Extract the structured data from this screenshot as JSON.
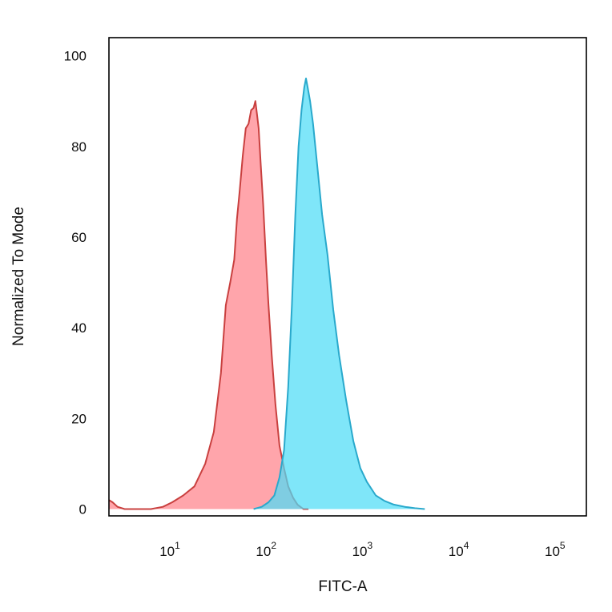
{
  "chart_data": {
    "type": "area",
    "title": "",
    "xlabel": "FITC-A",
    "ylabel": "Normalized To Mode",
    "x_scale": "log",
    "xlim": [
      2.2,
      200000
    ],
    "ylim": [
      -1.5,
      104
    ],
    "grid": false,
    "legend": "none",
    "x_ticks": [
      {
        "base": "10",
        "exp": "1",
        "value": 10
      },
      {
        "base": "10",
        "exp": "2",
        "value": 100
      },
      {
        "base": "10",
        "exp": "3",
        "value": 1000
      },
      {
        "base": "10",
        "exp": "4",
        "value": 10000
      },
      {
        "base": "10",
        "exp": "5",
        "value": 100000
      }
    ],
    "y_ticks": [
      {
        "label": "0",
        "value": 0
      },
      {
        "label": "20",
        "value": 20
      },
      {
        "label": "40",
        "value": 40
      },
      {
        "label": "60",
        "value": 60
      },
      {
        "label": "80",
        "value": 80
      },
      {
        "label": "100",
        "value": 100
      }
    ],
    "series": [
      {
        "color_fill": "#ff8c94",
        "color_line": "#c9403f",
        "opacity": 0.78,
        "x": [
          2.2,
          2.4,
          2.7,
          3.2,
          6,
          8,
          10,
          13,
          17,
          22,
          27,
          32,
          36,
          40,
          44,
          47,
          50,
          54,
          58,
          62,
          66,
          70,
          73,
          76,
          79,
          83,
          88,
          94,
          100,
          108,
          118,
          130,
          145,
          160,
          180,
          200,
          230,
          260
        ],
        "y": [
          2,
          1.5,
          0.5,
          0,
          0,
          0.5,
          1.5,
          3,
          5,
          10,
          17,
          30,
          45,
          50,
          55,
          64,
          70,
          78,
          84,
          85,
          88,
          88.5,
          90,
          87,
          84,
          76,
          67,
          55,
          45,
          34,
          23,
          14,
          9,
          5,
          2.5,
          1,
          0,
          0
        ]
      },
      {
        "color_fill": "#4ddcf6",
        "color_line": "#29a9cc",
        "opacity": 0.72,
        "x": [
          70,
          85,
          100,
          115,
          130,
          145,
          160,
          175,
          190,
          205,
          220,
          235,
          245,
          255,
          270,
          290,
          320,
          360,
          410,
          470,
          540,
          640,
          760,
          900,
          1050,
          1300,
          1600,
          2000,
          2600,
          3300,
          4200
        ],
        "y": [
          0,
          0.5,
          1.5,
          3,
          7,
          13,
          27,
          45,
          65,
          80,
          88,
          93,
          95,
          93,
          90,
          85,
          76,
          65,
          56,
          44,
          34,
          24,
          15,
          9,
          6,
          3,
          1.8,
          1,
          0.5,
          0.2,
          0
        ]
      }
    ]
  }
}
